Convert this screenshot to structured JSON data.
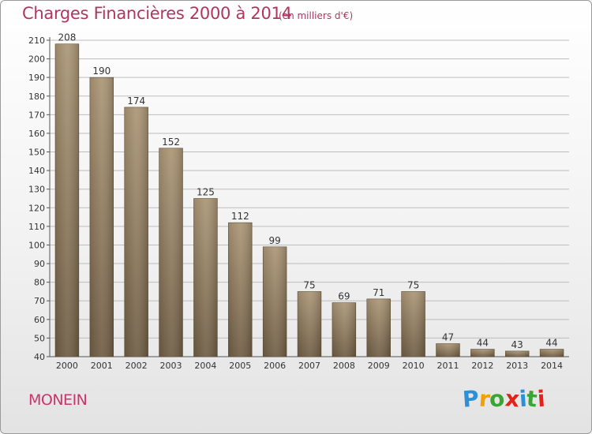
{
  "chart_data": {
    "type": "bar",
    "title": "Charges Financières 2000 à 2014",
    "subtitle": "(en milliers d'€)",
    "categories": [
      "2000",
      "2001",
      "2002",
      "2003",
      "2004",
      "2005",
      "2006",
      "2007",
      "2008",
      "2009",
      "2010",
      "2011",
      "2012",
      "2013",
      "2014"
    ],
    "values": [
      208,
      190,
      174,
      152,
      125,
      112,
      99,
      75,
      69,
      71,
      75,
      47,
      44,
      43,
      44
    ],
    "ylim": [
      40,
      210
    ],
    "yticks": [
      40,
      50,
      60,
      70,
      80,
      90,
      100,
      110,
      120,
      130,
      140,
      150,
      160,
      170,
      180,
      190,
      200,
      210
    ],
    "grid": true,
    "bar_color": "#8f7b5c",
    "accent_color": "#b0365f"
  },
  "footer": {
    "location": "MONEIN",
    "brand": "Proxiti",
    "brand_letters": [
      "P",
      "r",
      "o",
      "x",
      "i",
      "t",
      "i"
    ],
    "brand_colors": [
      "#2d8fd5",
      "#f3a000",
      "#3aa535",
      "#e2231a",
      "#2d8fd5",
      "#3aa535",
      "#e2231a"
    ]
  }
}
